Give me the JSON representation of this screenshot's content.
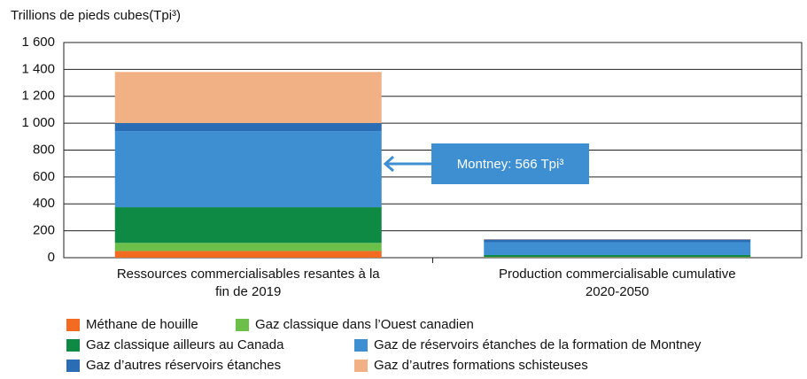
{
  "chart_data": {
    "type": "bar",
    "stacked": true,
    "y_label": "Trillions de pieds cubes(Tpi³)",
    "annotation": "Montney: 566 Tpi³",
    "categories": [
      "Ressources commercialisables resantes à la fin de 2019",
      "Production commercialisable cumulative 2020-2050"
    ],
    "series": [
      {
        "name": "Méthane de houille",
        "color": "#f26b21",
        "values": [
          50,
          2
        ]
      },
      {
        "name": "Gaz classique dans l’Ouest canadien",
        "color": "#6cc04a",
        "values": [
          60,
          3
        ]
      },
      {
        "name": "Gaz classique ailleurs au Canada",
        "color": "#0e8a45",
        "values": [
          265,
          15
        ]
      },
      {
        "name": "Gaz de réservoirs étanches de la formation de Montney",
        "color": "#3e8fd2",
        "values": [
          566,
          95
        ]
      },
      {
        "name": "Gaz d’autres réservoirs étanches",
        "color": "#2a6db5",
        "values": [
          60,
          20
        ]
      },
      {
        "name": "Gaz d’autres formations schisteuses",
        "color": "#f2b185",
        "values": [
          380,
          3
        ]
      }
    ],
    "ylim": [
      0,
      1600
    ],
    "yticks": [
      0,
      200,
      400,
      600,
      800,
      {
        "value": 1000,
        "label": "1 000"
      },
      {
        "value": 1200,
        "label": "1 200"
      },
      {
        "value": 1400,
        "label": "1 400"
      },
      {
        "value": 1600,
        "label": "1 600"
      }
    ],
    "grid": true
  }
}
